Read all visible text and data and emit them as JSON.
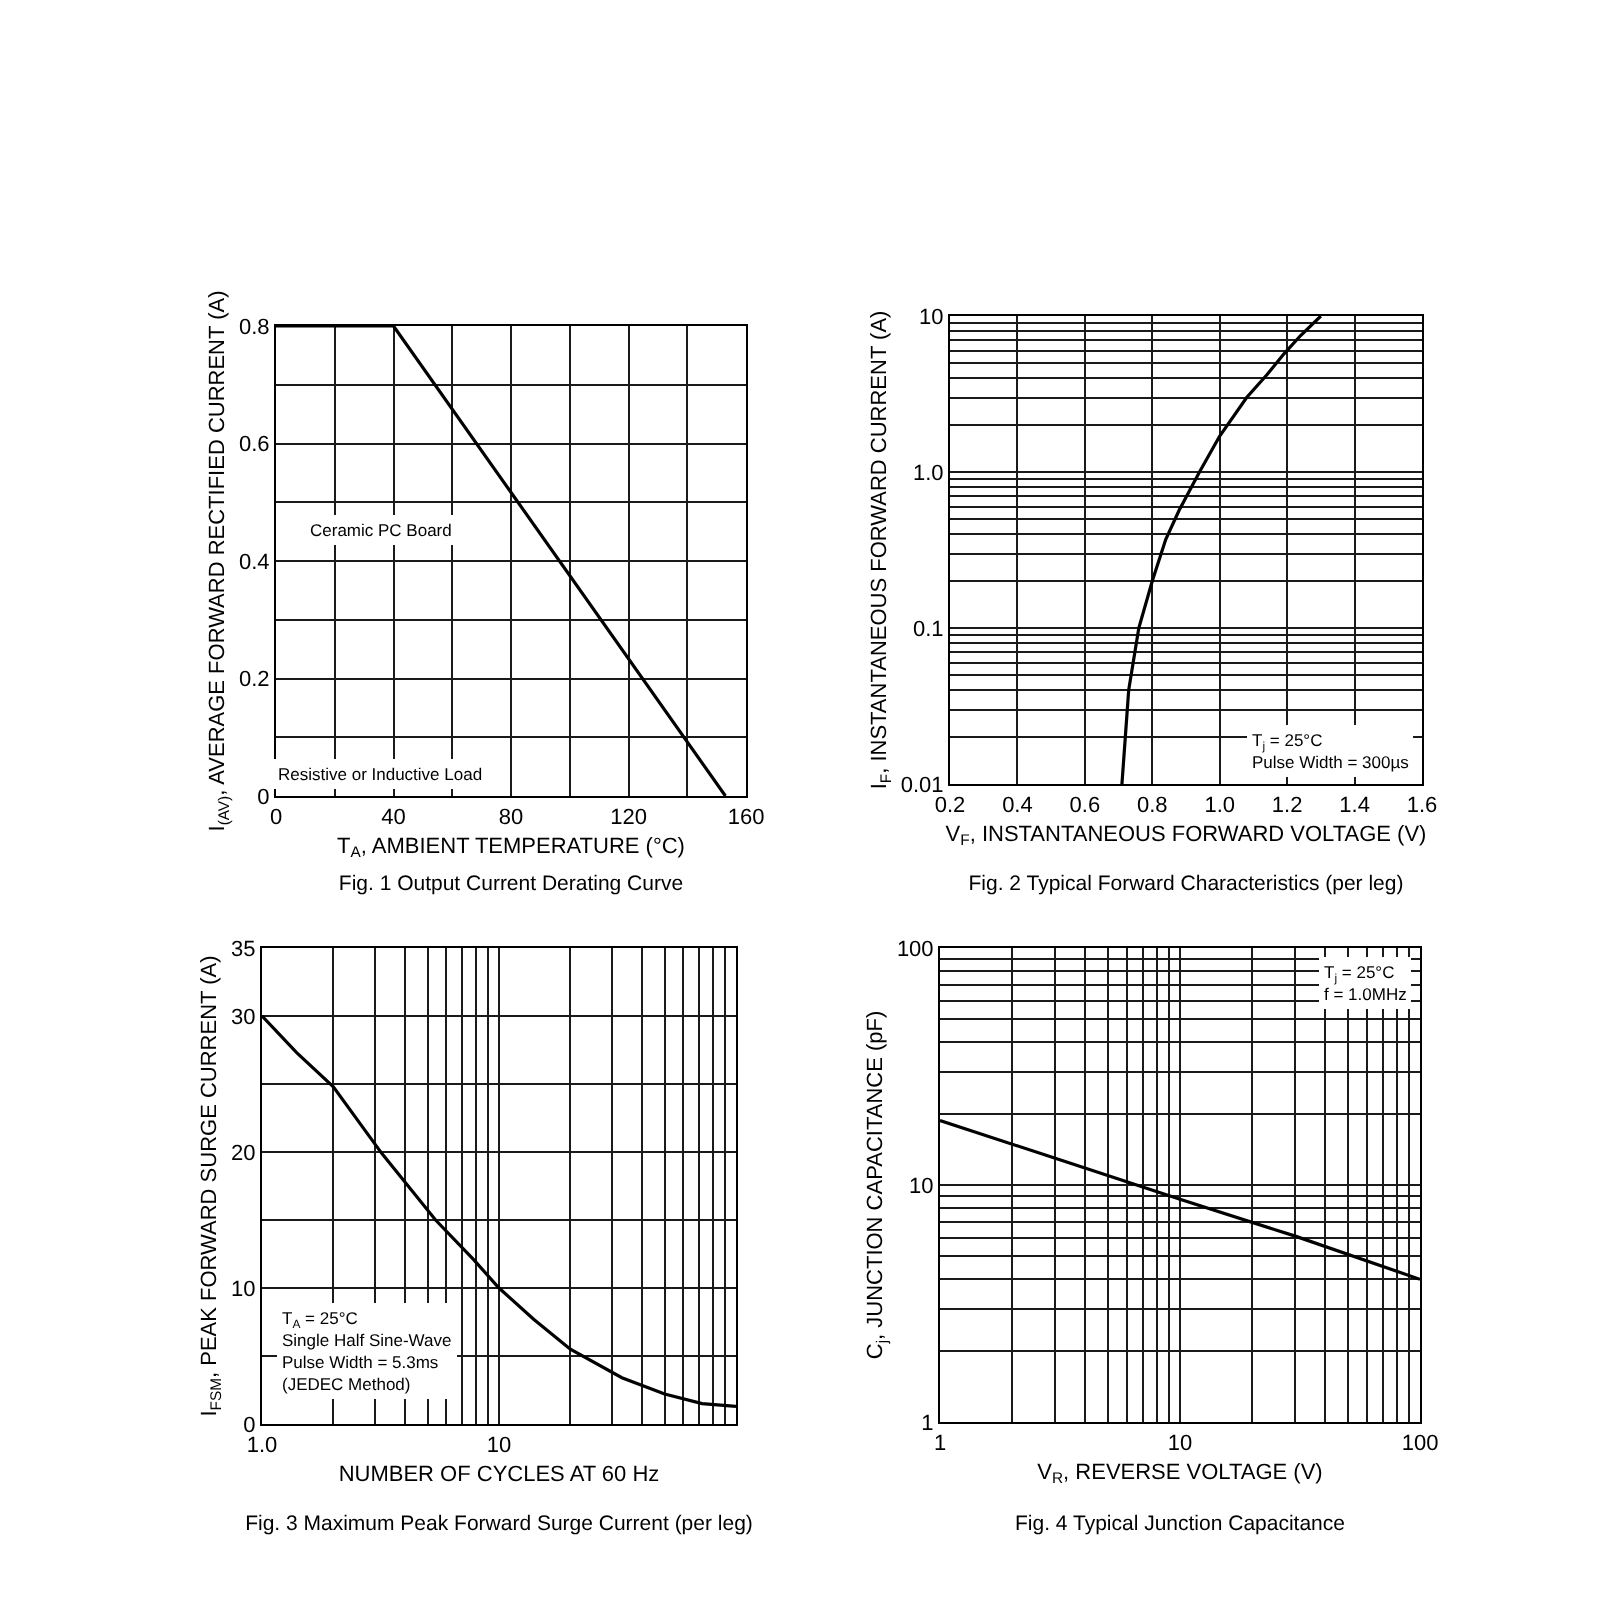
{
  "chart_data": [
    {
      "type": "line",
      "title": "Fig. 1 Output Current Derating Curve",
      "xlabel": "T$_{A}$, AMBIENT TEMPERATURE (°C)",
      "ylabel": "I$_{(AV)}$, AVERAGE FORWARD RECTIFIED CURRENT (A)",
      "x": [
        0,
        40,
        153
      ],
      "values": [
        0.8,
        0.8,
        0
      ],
      "color": "#000000",
      "xlim": [
        0,
        160
      ],
      "ylim": [
        0,
        0.8
      ],
      "xticks": [
        0,
        {
          "value": 20,
          "label": null
        },
        40,
        {
          "value": 60,
          "label": null
        },
        80,
        {
          "value": 100,
          "label": null
        },
        120,
        {
          "value": 140,
          "label": null
        },
        160
      ],
      "yticks": [
        0,
        {
          "value": 0.1,
          "label": null
        },
        0.2,
        {
          "value": 0.3,
          "label": null
        },
        0.4,
        {
          "value": 0.5,
          "label": null
        },
        0.6,
        {
          "value": 0.7,
          "label": null
        },
        0.8
      ],
      "grid": true,
      "annotations": [
        "Ceramic PC Board",
        "Resistive or Inductive Load"
      ]
    },
    {
      "type": "line",
      "title": "Fig. 2 Typical Forward Characteristics (per leg)",
      "xlabel": "V$_{F}$, INSTANTANEOUS FORWARD VOLTAGE (V)",
      "ylabel": "I$_{F}$, INSTANTANEOUS FORWARD CURRENT (A)",
      "x": [
        0.71,
        0.72,
        0.73,
        0.76,
        0.8,
        0.84,
        0.88,
        0.94,
        1.0,
        1.08,
        1.14,
        1.19,
        1.24,
        1.3
      ],
      "values": [
        0.01,
        0.02,
        0.04,
        0.1,
        0.2,
        0.37,
        0.57,
        1,
        1.7,
        3,
        4.2,
        5.7,
        7.5,
        10
      ],
      "color": "#000000",
      "xlim": [
        0.2,
        1.6
      ],
      "ylim": [
        0.01,
        10
      ],
      "xticks": [
        0.2,
        0.4,
        0.6,
        0.8,
        {
          "value": 1,
          "label": "1.0"
        },
        1.2,
        1.4,
        1.6
      ],
      "yticks": [
        0.01,
        {
          "value": 0.02,
          "label": null
        },
        {
          "value": 0.03,
          "label": null
        },
        {
          "value": 0.04,
          "label": null
        },
        {
          "value": 0.05,
          "label": null
        },
        {
          "value": 0.06,
          "label": null
        },
        {
          "value": 0.07,
          "label": null
        },
        {
          "value": 0.08,
          "label": null
        },
        {
          "value": 0.09,
          "label": null
        },
        0.1,
        {
          "value": 0.2,
          "label": null
        },
        {
          "value": 0.3,
          "label": null
        },
        {
          "value": 0.4,
          "label": null
        },
        {
          "value": 0.5,
          "label": null
        },
        {
          "value": 0.6,
          "label": null
        },
        {
          "value": 0.7,
          "label": null
        },
        {
          "value": 0.8,
          "label": null
        },
        {
          "value": 0.9,
          "label": null
        },
        {
          "value": 1,
          "label": "1.0"
        },
        {
          "value": 2,
          "label": null
        },
        {
          "value": 3,
          "label": null
        },
        {
          "value": 4,
          "label": null
        },
        {
          "value": 5,
          "label": null
        },
        {
          "value": 6,
          "label": null
        },
        {
          "value": 7,
          "label": null
        },
        {
          "value": 8,
          "label": null
        },
        {
          "value": 9,
          "label": null
        },
        10
      ],
      "log": "y",
      "grid": true,
      "annotations": [
        "T$_{j}$ = 25°C",
        "Pulse Width = 300µs"
      ]
    },
    {
      "type": "line",
      "title": "Fig. 3 Maximum Peak Forward Surge Current (per leg)",
      "xlabel": "NUMBER OF CYCLES AT 60 Hz",
      "ylabel": "I$_{FSM}$, PEAK FORWARD SURGE CURRENT (A)",
      "x": [
        1,
        1.4,
        2,
        3.2,
        5.4,
        7.8,
        10,
        14,
        20,
        33,
        50,
        72,
        100
      ],
      "values": [
        30,
        27.3,
        24.8,
        19.9,
        15,
        12.1,
        10,
        7.7,
        5.5,
        3.4,
        2.2,
        1.5,
        1.3
      ],
      "color": "#000000",
      "xlim": [
        1,
        100
      ],
      "ylim": [
        0,
        35
      ],
      "xticks": [
        {
          "value": 1,
          "label": "1.0"
        },
        {
          "value": 2,
          "label": null
        },
        {
          "value": 3,
          "label": null
        },
        {
          "value": 4,
          "label": null
        },
        {
          "value": 5,
          "label": null
        },
        {
          "value": 6,
          "label": null
        },
        {
          "value": 7,
          "label": null
        },
        {
          "value": 8,
          "label": null
        },
        {
          "value": 9,
          "label": null
        },
        10,
        {
          "value": 20,
          "label": null
        },
        {
          "value": 30,
          "label": null
        },
        {
          "value": 40,
          "label": null
        },
        {
          "value": 50,
          "label": null
        },
        {
          "value": 60,
          "label": null
        },
        {
          "value": 70,
          "label": null
        },
        {
          "value": 80,
          "label": null
        },
        {
          "value": 90,
          "label": null
        }
      ],
      "yticks": [
        0,
        {
          "value": 5,
          "label": null
        },
        10,
        {
          "value": 15,
          "label": null
        },
        20,
        {
          "value": 25,
          "label": null
        },
        30,
        35
      ],
      "log": "x",
      "grid": true,
      "annotations": [
        "T$_{A}$ = 25°C",
        "Single Half Sine-Wave",
        "Pulse Width = 5.3ms",
        "(JEDEC Method)"
      ]
    },
    {
      "type": "line",
      "title": "Fig. 4 Typical Junction Capacitance",
      "xlabel": "V$_{R}$, REVERSE VOLTAGE (V)",
      "ylabel": "C$_{j}$, JUNCTION CAPACITANCE (pF)",
      "x": [
        1,
        3,
        10,
        30,
        100
      ],
      "values": [
        18.7,
        13,
        8.7,
        6.1,
        4
      ],
      "color": "#000000",
      "xlim": [
        1,
        100
      ],
      "ylim": [
        1,
        100
      ],
      "xticks": [
        1,
        {
          "value": 2,
          "label": null
        },
        {
          "value": 3,
          "label": null
        },
        {
          "value": 4,
          "label": null
        },
        {
          "value": 5,
          "label": null
        },
        {
          "value": 6,
          "label": null
        },
        {
          "value": 7,
          "label": null
        },
        {
          "value": 8,
          "label": null
        },
        {
          "value": 9,
          "label": null
        },
        10,
        {
          "value": 20,
          "label": null
        },
        {
          "value": 30,
          "label": null
        },
        {
          "value": 40,
          "label": null
        },
        {
          "value": 50,
          "label": null
        },
        {
          "value": 60,
          "label": null
        },
        {
          "value": 70,
          "label": null
        },
        {
          "value": 80,
          "label": null
        },
        {
          "value": 90,
          "label": null
        },
        100
      ],
      "yticks": [
        1,
        {
          "value": 2,
          "label": null
        },
        {
          "value": 3,
          "label": null
        },
        {
          "value": 4,
          "label": null
        },
        {
          "value": 5,
          "label": null
        },
        {
          "value": 6,
          "label": null
        },
        {
          "value": 7,
          "label": null
        },
        {
          "value": 8,
          "label": null
        },
        {
          "value": 9,
          "label": null
        },
        10,
        {
          "value": 20,
          "label": null
        },
        {
          "value": 30,
          "label": null
        },
        {
          "value": 40,
          "label": null
        },
        {
          "value": 50,
          "label": null
        },
        {
          "value": 60,
          "label": null
        },
        {
          "value": 70,
          "label": null
        },
        {
          "value": 80,
          "label": null
        },
        {
          "value": 90,
          "label": null
        },
        100
      ],
      "log": "xy",
      "grid": true,
      "annotations": [
        "T$_{j}$ = 25°C",
        "f = 1.0MHz"
      ]
    }
  ]
}
